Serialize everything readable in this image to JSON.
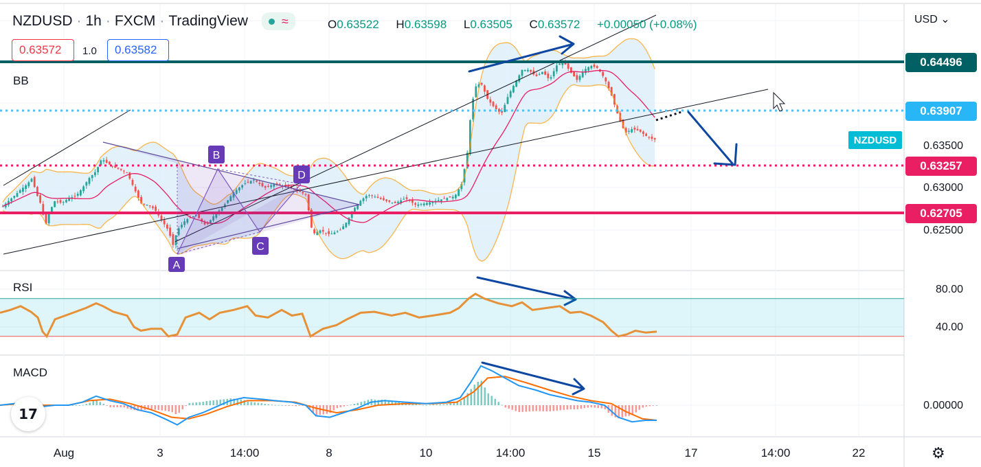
{
  "header": {
    "symbol": "NZDUSD",
    "interval": "1h",
    "exchange": "FXCM",
    "source": "TradingView",
    "ohlc": {
      "o": "0.63522",
      "h": "0.63598",
      "l": "0.63505",
      "c": "0.63572",
      "change": "+0.00050 (+0.08%)"
    },
    "sell_price": "0.63572",
    "quantity": "1.0",
    "buy_price": "0.63582"
  },
  "currency_menu": "USD",
  "pane_labels": {
    "main": "BB",
    "rsi": "RSI",
    "macd": "MACD"
  },
  "symbol_tag": "NZDUSD",
  "logo_text": "17",
  "colors": {
    "up": "#26a69a",
    "down": "#ef5350",
    "bb_band": "#ff9800",
    "bb_basis": "#e91e63",
    "bb_fill": "#d9ecfa",
    "resistance": "#006064",
    "dotted_blue": "#4fc3f7",
    "dotted_pink": "#e91e63",
    "support_pink": "#e91e63",
    "arrow": "#0d47a1",
    "pattern": "#673ab7",
    "rsi_line": "#e69138",
    "macd_line": "#2196f3",
    "signal_line": "#ff6d00"
  },
  "chart_data": {
    "type": "candlestick",
    "title": "",
    "x_ticks": [
      "Aug",
      "3",
      "14:00",
      "8",
      "10",
      "14:00",
      "15",
      "17",
      "14:00",
      "22"
    ],
    "price_axis_labels": [
      "0.63500",
      "0.63000",
      "0.62500"
    ],
    "price_axis_partial": "0.64000",
    "price_tags": [
      {
        "value": "0.64496",
        "color": "#006064",
        "style": "solid"
      },
      {
        "value": "0.63907",
        "color": "#4fc3f7",
        "style": "dotted"
      },
      {
        "value": "0.63257",
        "color": "#e91e63",
        "style": "dotted"
      },
      {
        "value": "0.62705",
        "color": "#e91e63",
        "style": "solid"
      }
    ],
    "close_path": [
      [
        0,
        0.6275
      ],
      [
        10,
        0.6283
      ],
      [
        20,
        0.629
      ],
      [
        30,
        0.6298
      ],
      [
        40,
        0.6305
      ],
      [
        47,
        0.6312
      ],
      [
        52,
        0.6295
      ],
      [
        60,
        0.628
      ],
      [
        66,
        0.6255
      ],
      [
        72,
        0.6272
      ],
      [
        80,
        0.6285
      ],
      [
        90,
        0.6282
      ],
      [
        100,
        0.6288
      ],
      [
        110,
        0.629
      ],
      [
        120,
        0.63
      ],
      [
        130,
        0.6312
      ],
      [
        140,
        0.632
      ],
      [
        148,
        0.6335
      ],
      [
        155,
        0.633
      ],
      [
        165,
        0.6325
      ],
      [
        175,
        0.6322
      ],
      [
        185,
        0.6318
      ],
      [
        195,
        0.63
      ],
      [
        205,
        0.6282
      ],
      [
        215,
        0.628
      ],
      [
        225,
        0.6275
      ],
      [
        235,
        0.6262
      ],
      [
        245,
        0.625
      ],
      [
        252,
        0.6232
      ],
      [
        258,
        0.625
      ],
      [
        270,
        0.6262
      ],
      [
        285,
        0.6268
      ],
      [
        300,
        0.6255
      ],
      [
        312,
        0.6268
      ],
      [
        325,
        0.6278
      ],
      [
        340,
        0.6295
      ],
      [
        355,
        0.6305
      ],
      [
        370,
        0.631
      ],
      [
        385,
        0.63
      ],
      [
        400,
        0.6305
      ],
      [
        415,
        0.6302
      ],
      [
        430,
        0.6298
      ],
      [
        445,
        0.6292
      ],
      [
        450,
        0.627
      ],
      [
        455,
        0.6245
      ],
      [
        465,
        0.625
      ],
      [
        480,
        0.6245
      ],
      [
        495,
        0.625
      ],
      [
        505,
        0.626
      ],
      [
        515,
        0.6275
      ],
      [
        525,
        0.6285
      ],
      [
        535,
        0.6292
      ],
      [
        545,
        0.629
      ],
      [
        560,
        0.6285
      ],
      [
        575,
        0.6282
      ],
      [
        590,
        0.6288
      ],
      [
        605,
        0.628
      ],
      [
        620,
        0.6282
      ],
      [
        635,
        0.6285
      ],
      [
        650,
        0.6288
      ],
      [
        662,
        0.629
      ],
      [
        672,
        0.6305
      ],
      [
        680,
        0.634
      ],
      [
        686,
        0.6395
      ],
      [
        692,
        0.642
      ],
      [
        700,
        0.6425
      ],
      [
        710,
        0.6405
      ],
      [
        720,
        0.6395
      ],
      [
        730,
        0.6388
      ],
      [
        740,
        0.641
      ],
      [
        750,
        0.6425
      ],
      [
        760,
        0.644
      ],
      [
        770,
        0.644
      ],
      [
        780,
        0.6432
      ],
      [
        790,
        0.6438
      ],
      [
        800,
        0.6428
      ],
      [
        810,
        0.6445
      ],
      [
        820,
        0.645
      ],
      [
        830,
        0.6438
      ],
      [
        840,
        0.6428
      ],
      [
        850,
        0.644
      ],
      [
        860,
        0.6445
      ],
      [
        870,
        0.6442
      ],
      [
        880,
        0.643
      ],
      [
        890,
        0.641
      ],
      [
        900,
        0.6385
      ],
      [
        910,
        0.6365
      ],
      [
        920,
        0.637
      ],
      [
        930,
        0.6368
      ],
      [
        940,
        0.6362
      ],
      [
        950,
        0.6358
      ],
      [
        956,
        0.63572
      ]
    ],
    "rsi": {
      "labels": [
        "80.00",
        "40.00"
      ],
      "upper": 70,
      "lower": 30,
      "path": [
        [
          0,
          55
        ],
        [
          15,
          58
        ],
        [
          30,
          62
        ],
        [
          45,
          56
        ],
        [
          55,
          50
        ],
        [
          62,
          35
        ],
        [
          68,
          30
        ],
        [
          80,
          48
        ],
        [
          95,
          52
        ],
        [
          110,
          56
        ],
        [
          125,
          60
        ],
        [
          140,
          65
        ],
        [
          150,
          62
        ],
        [
          165,
          56
        ],
        [
          185,
          52
        ],
        [
          195,
          40
        ],
        [
          205,
          36
        ],
        [
          220,
          38
        ],
        [
          235,
          38
        ],
        [
          245,
          30
        ],
        [
          258,
          32
        ],
        [
          270,
          50
        ],
        [
          290,
          55
        ],
        [
          305,
          48
        ],
        [
          320,
          55
        ],
        [
          340,
          58
        ],
        [
          360,
          62
        ],
        [
          372,
          52
        ],
        [
          390,
          50
        ],
        [
          410,
          58
        ],
        [
          425,
          52
        ],
        [
          440,
          54
        ],
        [
          452,
          30
        ],
        [
          470,
          38
        ],
        [
          490,
          42
        ],
        [
          505,
          48
        ],
        [
          525,
          55
        ],
        [
          545,
          56
        ],
        [
          570,
          52
        ],
        [
          590,
          55
        ],
        [
          610,
          50
        ],
        [
          630,
          52
        ],
        [
          655,
          55
        ],
        [
          668,
          60
        ],
        [
          682,
          70
        ],
        [
          692,
          75
        ],
        [
          705,
          70
        ],
        [
          725,
          65
        ],
        [
          745,
          62
        ],
        [
          760,
          66
        ],
        [
          775,
          58
        ],
        [
          795,
          60
        ],
        [
          815,
          62
        ],
        [
          830,
          55
        ],
        [
          845,
          56
        ],
        [
          860,
          52
        ],
        [
          878,
          45
        ],
        [
          890,
          36
        ],
        [
          900,
          30
        ],
        [
          912,
          32
        ],
        [
          925,
          36
        ],
        [
          940,
          34
        ],
        [
          956,
          35
        ]
      ]
    },
    "macd": {
      "zero_label": "0.00000",
      "path": [
        [
          0,
          0.0
        ],
        [
          20,
          0.1
        ],
        [
          40,
          0.2
        ],
        [
          60,
          -0.1
        ],
        [
          80,
          0.0
        ],
        [
          100,
          0.0
        ],
        [
          120,
          0.2
        ],
        [
          140,
          0.6
        ],
        [
          160,
          0.3
        ],
        [
          180,
          0.1
        ],
        [
          200,
          -0.3
        ],
        [
          220,
          -0.5
        ],
        [
          240,
          -0.9
        ],
        [
          258,
          -1.3
        ],
        [
          275,
          -0.8
        ],
        [
          295,
          -0.5
        ],
        [
          315,
          -0.1
        ],
        [
          335,
          0.3
        ],
        [
          355,
          0.5
        ],
        [
          380,
          0.4
        ],
        [
          400,
          0.3
        ],
        [
          425,
          0.2
        ],
        [
          445,
          0.0
        ],
        [
          460,
          -0.7
        ],
        [
          480,
          -0.8
        ],
        [
          500,
          -0.5
        ],
        [
          520,
          -0.2
        ],
        [
          540,
          0.2
        ],
        [
          560,
          0.3
        ],
        [
          590,
          0.2
        ],
        [
          620,
          0.1
        ],
        [
          650,
          0.2
        ],
        [
          670,
          0.5
        ],
        [
          685,
          1.5
        ],
        [
          700,
          2.6
        ],
        [
          715,
          2.3
        ],
        [
          735,
          1.8
        ],
        [
          755,
          1.3
        ],
        [
          780,
          1.0
        ],
        [
          800,
          0.7
        ],
        [
          820,
          0.5
        ],
        [
          840,
          0.3
        ],
        [
          860,
          0.2
        ],
        [
          880,
          0.0
        ],
        [
          900,
          -0.8
        ],
        [
          920,
          -1.1
        ],
        [
          940,
          -1.0
        ],
        [
          956,
          -1.0
        ]
      ],
      "signal": [
        [
          0,
          0.0
        ],
        [
          30,
          0.1
        ],
        [
          60,
          0.0
        ],
        [
          100,
          0.0
        ],
        [
          130,
          0.3
        ],
        [
          160,
          0.4
        ],
        [
          190,
          0.1
        ],
        [
          220,
          -0.3
        ],
        [
          250,
          -0.8
        ],
        [
          275,
          -0.9
        ],
        [
          300,
          -0.6
        ],
        [
          330,
          -0.1
        ],
        [
          360,
          0.3
        ],
        [
          395,
          0.3
        ],
        [
          430,
          0.2
        ],
        [
          460,
          -0.2
        ],
        [
          490,
          -0.5
        ],
        [
          520,
          -0.3
        ],
        [
          550,
          0.0
        ],
        [
          590,
          0.1
        ],
        [
          630,
          0.1
        ],
        [
          665,
          0.2
        ],
        [
          690,
          0.9
        ],
        [
          710,
          1.8
        ],
        [
          735,
          1.9
        ],
        [
          765,
          1.5
        ],
        [
          800,
          1.0
        ],
        [
          830,
          0.6
        ],
        [
          860,
          0.3
        ],
        [
          890,
          0.1
        ],
        [
          910,
          -0.4
        ],
        [
          935,
          -0.9
        ],
        [
          956,
          -1.0
        ]
      ]
    },
    "pattern_points": [
      "A",
      "B",
      "C",
      "D"
    ]
  }
}
